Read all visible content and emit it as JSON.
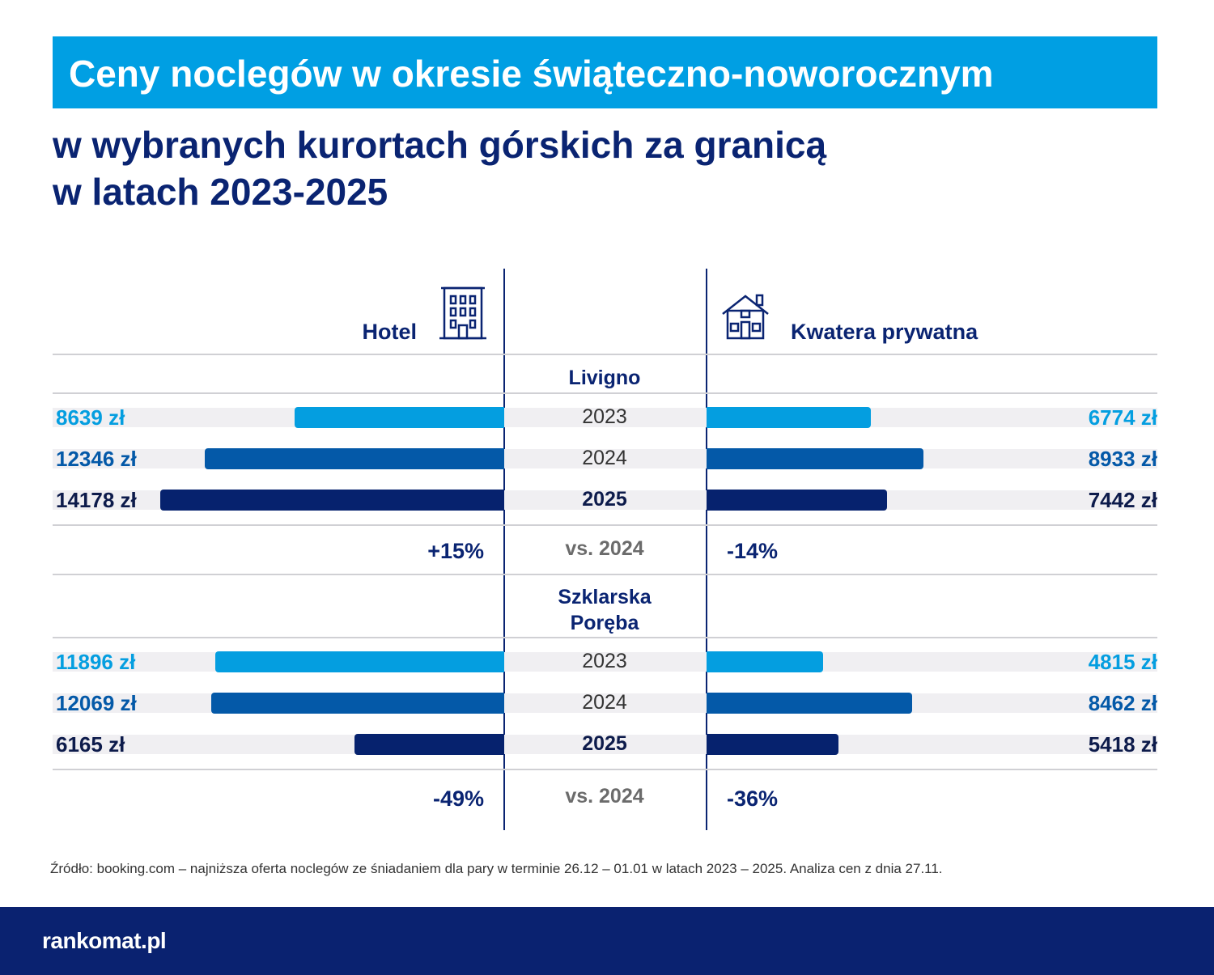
{
  "chart_data": {
    "type": "bar",
    "title": "Ceny noclegów w okresie świąteczno-noworocznym",
    "subtitle": [
      "w wybranych kurortach górskich za granicą",
      "w latach 2023-2025"
    ],
    "colors": [
      "#049ee0",
      "#0459a8",
      "#06226e"
    ],
    "groups": [
      {
        "name": "Livigno",
        "categories": [
          "2023",
          "2024",
          "2025"
        ],
        "series": [
          {
            "name": "Hotel",
            "values": [
              8639,
              12346,
              14178
            ],
            "value_labels": [
              "8639 zł",
              "12346 zł",
              "14178 zł"
            ]
          },
          {
            "name": "Kwatera prywatna",
            "values": [
              6774,
              8933,
              7442
            ],
            "value_labels": [
              "6774 zł",
              "8933 zł",
              "7442 zł"
            ]
          }
        ],
        "comparison_label": "vs. 2024",
        "changes": [
          15,
          -14
        ],
        "change_labels": [
          "+15%",
          "-14%"
        ]
      },
      {
        "name": "Szklarska Poręba",
        "categories": [
          "2023",
          "2024",
          "2025"
        ],
        "series": [
          {
            "name": "Hotel",
            "values": [
              11896,
              12069,
              6165
            ],
            "value_labels": [
              "11896 zł",
              "12069 zł",
              "6165 zł"
            ]
          },
          {
            "name": "Kwatera prywatna",
            "values": [
              4815,
              8462,
              5418
            ],
            "value_labels": [
              "4815 zł",
              "8462 zł",
              "5418 zł"
            ]
          }
        ],
        "comparison_label": "vs. 2024",
        "changes": [
          -49,
          -36
        ],
        "change_labels": [
          "-49%",
          "-36%"
        ]
      }
    ],
    "source": "Źródło: booking.com – najniższa oferta noclegów ze śniadaniem dla pary w terminie 26.12 – 01.01 w latach 2023 – 2025. Analiza cen z dnia 27.11.",
    "brand": "rankomat.pl"
  }
}
